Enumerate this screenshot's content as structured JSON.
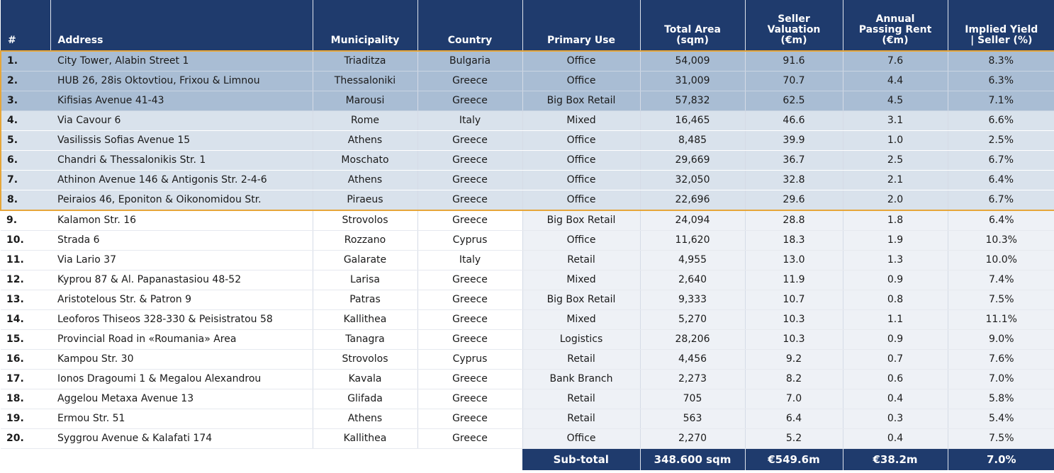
{
  "headers": {
    "num": "#",
    "address": "Address",
    "municipality": "Municipality",
    "country": "Country",
    "primary_use": "Primary Use",
    "total_area": [
      "Total Area",
      "(sqm)"
    ],
    "seller_valuation": [
      "Seller",
      "Valuation",
      "(€m)"
    ],
    "annual_rent": [
      "Annual",
      "Passing Rent",
      "(€m)"
    ],
    "implied_yield": [
      "Implied Yield",
      "| Seller (%)"
    ]
  },
  "rows": [
    {
      "n": "1.",
      "address": "City Tower, Alabin Street 1",
      "municipality": "Triaditza",
      "country": "Bulgaria",
      "use": "Office",
      "area": "54,009",
      "valuation": "91.6",
      "rent": "7.6",
      "yield": "8.3%"
    },
    {
      "n": "2.",
      "address": "HUB 26, 28is Oktovtiou, Frixou & Limnou",
      "municipality": "Thessaloniki",
      "country": "Greece",
      "use": "Office",
      "area": "31,009",
      "valuation": "70.7",
      "rent": "4.4",
      "yield": "6.3%"
    },
    {
      "n": "3.",
      "address": "Kifisias Avenue 41-43",
      "municipality": "Marousi",
      "country": "Greece",
      "use": "Big Box Retail",
      "area": "57,832",
      "valuation": "62.5",
      "rent": "4.5",
      "yield": "7.1%"
    },
    {
      "n": "4.",
      "address": "Via Cavour 6",
      "municipality": "Rome",
      "country": "Italy",
      "use": "Mixed",
      "area": "16,465",
      "valuation": "46.6",
      "rent": "3.1",
      "yield": "6.6%"
    },
    {
      "n": "5.",
      "address": "Vasilissis Sofias Avenue 15",
      "municipality": "Athens",
      "country": "Greece",
      "use": "Office",
      "area": "8,485",
      "valuation": "39.9",
      "rent": "1.0",
      "yield": "2.5%"
    },
    {
      "n": "6.",
      "address": "Chandri & Thessalonikis Str. 1",
      "municipality": "Moschato",
      "country": "Greece",
      "use": "Office",
      "area": "29,669",
      "valuation": "36.7",
      "rent": "2.5",
      "yield": "6.7%"
    },
    {
      "n": "7.",
      "address": "Athinon Avenue 146 & Antigonis Str. 2-4-6",
      "municipality": "Athens",
      "country": "Greece",
      "use": "Office",
      "area": "32,050",
      "valuation": "32.8",
      "rent": "2.1",
      "yield": "6.4%"
    },
    {
      "n": "8.",
      "address": "Peiraios 46, Eponiton & Oikonomidou Str.",
      "municipality": "Piraeus",
      "country": "Greece",
      "use": "Office",
      "area": "22,696",
      "valuation": "29.6",
      "rent": "2.0",
      "yield": "6.7%"
    },
    {
      "n": "9.",
      "address": "Kalamon Str. 16",
      "municipality": "Strovolos",
      "country": "Greece",
      "use": "Big Box Retail",
      "area": "24,094",
      "valuation": "28.8",
      "rent": "1.8",
      "yield": "6.4%"
    },
    {
      "n": "10.",
      "address": "Strada 6",
      "municipality": "Rozzano",
      "country": "Cyprus",
      "use": "Office",
      "area": "11,620",
      "valuation": "18.3",
      "rent": "1.9",
      "yield": "10.3%"
    },
    {
      "n": "11.",
      "address": "Via Lario 37",
      "municipality": "Galarate",
      "country": "Italy",
      "use": "Retail",
      "area": "4,955",
      "valuation": "13.0",
      "rent": "1.3",
      "yield": "10.0%"
    },
    {
      "n": "12.",
      "address": "Kyprou 87 & Al. Papanastasiou 48-52",
      "municipality": "Larisa",
      "country": "Greece",
      "use": "Mixed",
      "area": "2,640",
      "valuation": "11.9",
      "rent": "0.9",
      "yield": "7.4%"
    },
    {
      "n": "13.",
      "address": "Aristotelous Str. & Patron 9",
      "municipality": "Patras",
      "country": "Greece",
      "use": "Big Box Retail",
      "area": "9,333",
      "valuation": "10.7",
      "rent": "0.8",
      "yield": "7.5%"
    },
    {
      "n": "14.",
      "address": "Leoforos Thiseos 328-330 & Peisistratou 58",
      "municipality": "Kallithea",
      "country": "Greece",
      "use": "Mixed",
      "area": "5,270",
      "valuation": "10.3",
      "rent": "1.1",
      "yield": "11.1%"
    },
    {
      "n": "15.",
      "address": "Provincial Road in «Roumania» Area",
      "municipality": "Tanagra",
      "country": "Greece",
      "use": "Logistics",
      "area": "28,206",
      "valuation": "10.3",
      "rent": "0.9",
      "yield": "9.0%"
    },
    {
      "n": "16.",
      "address": "Kampou Str. 30",
      "municipality": "Strovolos",
      "country": "Cyprus",
      "use": "Retail",
      "area": "4,456",
      "valuation": "9.2",
      "rent": "0.7",
      "yield": "7.6%"
    },
    {
      "n": "17.",
      "address": "Ionos Dragoumi 1 & Megalou Alexandrou",
      "municipality": "Kavala",
      "country": "Greece",
      "use": "Bank Branch",
      "area": "2,273",
      "valuation": "8.2",
      "rent": "0.6",
      "yield": "7.0%"
    },
    {
      "n": "18.",
      "address": "Aggelou Metaxa Avenue 13",
      "municipality": "Glifada",
      "country": "Greece",
      "use": "Retail",
      "area": "705",
      "valuation": "7.0",
      "rent": "0.4",
      "yield": "5.8%"
    },
    {
      "n": "19.",
      "address": "Ermou Str. 51",
      "municipality": "Athens",
      "country": "Greece",
      "use": "Retail",
      "area": "563",
      "valuation": "6.4",
      "rent": "0.3",
      "yield": "5.4%"
    },
    {
      "n": "20.",
      "address": "Syggrou Avenue & Kalafati 174",
      "municipality": "Kallithea",
      "country": "Greece",
      "use": "Office",
      "area": "2,270",
      "valuation": "5.2",
      "rent": "0.4",
      "yield": "7.5%"
    }
  ],
  "subtotal": {
    "label": "Sub-total",
    "area": "348.600 sqm",
    "valuation": "€549.6m",
    "rent": "€38.2m",
    "yield": "7.0%"
  },
  "colors": {
    "header_bg": "#1f3b6d",
    "highlight_dark": "#a9bdd4",
    "highlight_light": "#d9e2ec",
    "highlight_border": "#e6a63a"
  }
}
